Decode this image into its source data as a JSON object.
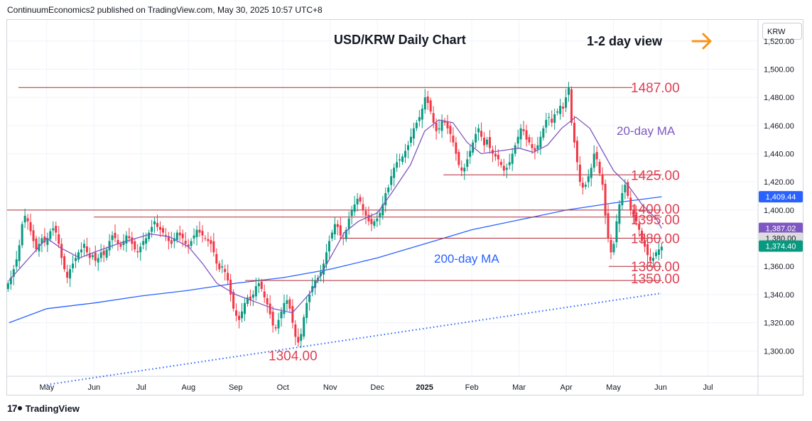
{
  "publisher": "ContinuumEconomics2 published on TradingView.com, May 30, 2025 10:57 UTC+8",
  "branding": {
    "logo_icon": "tradingview-logo-icon",
    "name": "TradingView"
  },
  "currency_label": "KRW",
  "colors": {
    "up": "#089981",
    "down": "#f23645",
    "ma20": "#7e57c2",
    "ma200": "#2962ff",
    "level_line": "#b22833",
    "level_text": "#e03e52",
    "arrow": "#f7931a",
    "price_box": "#131722"
  },
  "chart_data": {
    "type": "candlestick",
    "title": "USD/KRW Daily Chart",
    "subtitle": "1-2 day view",
    "view_direction": "sideways",
    "xlabel": "",
    "ylabel": "",
    "ylim": [
      1282,
      1535
    ],
    "y_ticks": [
      "1,300.00",
      "1,320.00",
      "1,340.00",
      "1,360.00",
      "1,380.00",
      "1,400.00",
      "1,420.00",
      "1,440.00",
      "1,460.00",
      "1,480.00",
      "1,500.00",
      "1,520.00"
    ],
    "y_tick_values": [
      1300,
      1320,
      1340,
      1360,
      1380,
      1400,
      1420,
      1440,
      1460,
      1480,
      1500,
      1520
    ],
    "x_ticks": [
      "May",
      "Jun",
      "Jul",
      "Aug",
      "Sep",
      "Oct",
      "Nov",
      "Dec",
      "2025",
      "Feb",
      "Mar",
      "Apr",
      "May",
      "Jun",
      "Jul"
    ],
    "x_tick_months": [
      0,
      1,
      2,
      3,
      4,
      5,
      6,
      7,
      8,
      9,
      10,
      11,
      12,
      13,
      14
    ],
    "x_range_months": [
      -0.84,
      15.06
    ],
    "last_candle_month": 13.02,
    "closes": [
      1348,
      1352,
      1358,
      1365,
      1375,
      1390,
      1396,
      1392,
      1385,
      1378,
      1372,
      1376,
      1380,
      1377,
      1380,
      1385,
      1387,
      1384,
      1376,
      1366,
      1358,
      1352,
      1358,
      1362,
      1366,
      1370,
      1372,
      1376,
      1370,
      1366,
      1368,
      1364,
      1366,
      1370,
      1368,
      1372,
      1378,
      1382,
      1380,
      1376,
      1374,
      1378,
      1382,
      1380,
      1376,
      1372,
      1370,
      1374,
      1378,
      1380,
      1384,
      1388,
      1392,
      1388,
      1386,
      1384,
      1382,
      1378,
      1376,
      1380,
      1384,
      1382,
      1380,
      1376,
      1374,
      1378,
      1382,
      1386,
      1384,
      1382,
      1380,
      1378,
      1376,
      1370,
      1362,
      1358,
      1360,
      1356,
      1350,
      1340,
      1330,
      1325,
      1322,
      1328,
      1334,
      1338,
      1336,
      1340,
      1346,
      1348,
      1344,
      1338,
      1333,
      1326,
      1318,
      1316,
      1322,
      1328,
      1334,
      1336,
      1330,
      1320,
      1310,
      1306,
      1312,
      1324,
      1334,
      1340,
      1346,
      1350,
      1352,
      1356,
      1362,
      1370,
      1378,
      1384,
      1390,
      1388,
      1382,
      1380,
      1386,
      1394,
      1400,
      1404,
      1408,
      1406,
      1400,
      1396,
      1392,
      1390,
      1392,
      1394,
      1398,
      1404,
      1412,
      1416,
      1424,
      1430,
      1434,
      1436,
      1438,
      1442,
      1446,
      1452,
      1458,
      1462,
      1466,
      1472,
      1480,
      1476,
      1470,
      1462,
      1456,
      1458,
      1464,
      1462,
      1458,
      1454,
      1448,
      1440,
      1432,
      1428,
      1430,
      1436,
      1442,
      1448,
      1454,
      1458,
      1452,
      1446,
      1450,
      1444,
      1440,
      1438,
      1436,
      1432,
      1428,
      1430,
      1434,
      1440,
      1446,
      1452,
      1458,
      1456,
      1450,
      1448,
      1444,
      1442,
      1446,
      1452,
      1458,
      1464,
      1466,
      1462,
      1468,
      1470,
      1474,
      1472,
      1480,
      1487,
      1462,
      1448,
      1434,
      1420,
      1416,
      1418,
      1424,
      1430,
      1440,
      1436,
      1426,
      1418,
      1396,
      1380,
      1370,
      1376,
      1392,
      1404,
      1412,
      1418,
      1410,
      1400,
      1396,
      1392,
      1386,
      1378,
      1374,
      1368,
      1364,
      1366,
      1370,
      1372,
      1374
    ],
    "ma20": {
      "name": "20-day MA",
      "points": [
        [
          -0.8,
          1350
        ],
        [
          0.0,
          1380
        ],
        [
          0.3,
          1373
        ],
        [
          0.7,
          1366
        ],
        [
          1.0,
          1370
        ],
        [
          1.5,
          1376
        ],
        [
          1.9,
          1380
        ],
        [
          2.2,
          1383
        ],
        [
          2.6,
          1381
        ],
        [
          3.0,
          1374
        ],
        [
          3.3,
          1362
        ],
        [
          3.6,
          1348
        ],
        [
          4.0,
          1340
        ],
        [
          4.4,
          1335
        ],
        [
          4.8,
          1330
        ],
        [
          5.2,
          1327
        ],
        [
          5.6,
          1342
        ],
        [
          6.0,
          1366
        ],
        [
          6.3,
          1384
        ],
        [
          6.6,
          1392
        ],
        [
          7.0,
          1398
        ],
        [
          7.3,
          1412
        ],
        [
          7.7,
          1432
        ],
        [
          8.0,
          1456
        ],
        [
          8.3,
          1464
        ],
        [
          8.6,
          1462
        ],
        [
          8.9,
          1448
        ],
        [
          9.2,
          1440
        ],
        [
          9.6,
          1442
        ],
        [
          10.0,
          1444
        ],
        [
          10.3,
          1441
        ],
        [
          10.6,
          1446
        ],
        [
          10.9,
          1458
        ],
        [
          11.2,
          1466
        ],
        [
          11.5,
          1458
        ],
        [
          11.8,
          1440
        ],
        [
          12.0,
          1428
        ],
        [
          12.3,
          1418
        ],
        [
          12.6,
          1404
        ],
        [
          12.9,
          1394
        ],
        [
          13.02,
          1387
        ]
      ]
    },
    "ma200": {
      "name": "200-day MA",
      "points": [
        [
          -0.8,
          1320
        ],
        [
          0.0,
          1330
        ],
        [
          1.0,
          1334
        ],
        [
          2.0,
          1339
        ],
        [
          3.0,
          1343
        ],
        [
          4.0,
          1348
        ],
        [
          5.0,
          1352
        ],
        [
          6.0,
          1358
        ],
        [
          7.0,
          1366
        ],
        [
          8.0,
          1376
        ],
        [
          9.0,
          1386
        ],
        [
          10.0,
          1393
        ],
        [
          11.0,
          1400
        ],
        [
          12.0,
          1405
        ],
        [
          13.02,
          1409.44
        ]
      ]
    },
    "trendline": {
      "from": [
        -0.0,
        1276
      ],
      "to": [
        13.02,
        1341
      ]
    },
    "levels": [
      {
        "label": "1487.00",
        "value": 1487,
        "from": -0.6,
        "to": 12.4
      },
      {
        "label": "1425.00",
        "value": 1425,
        "from": 8.4,
        "to": 13.02
      },
      {
        "label": "1400.00",
        "value": 1400,
        "from": -0.84,
        "to": 13.02
      },
      {
        "label": "1395.00",
        "value": 1395,
        "from": 1.0,
        "to": 13.02
      },
      {
        "label": "1380.00",
        "value": 1380,
        "from": 6.2,
        "to": 13.02
      },
      {
        "label": "1360.00",
        "value": 1360,
        "from": 11.9,
        "to": 13.02
      },
      {
        "label": "1350.00",
        "value": 1350,
        "from": 4.2,
        "to": 13.02
      },
      {
        "label": "1304.00",
        "value": 1304,
        "from": 5.0,
        "to": 5.2
      }
    ],
    "series_labels": [
      "20-day MA",
      "200-day MA"
    ],
    "price_tags": [
      {
        "label": "1,409.44",
        "value": 1409.44,
        "color": "#2962ff"
      },
      {
        "label": "1,387.02",
        "value": 1387.02,
        "color": "#7e57c2"
      },
      {
        "label": "1,380.00",
        "value": 1380.0,
        "color": "#dcdcdc"
      },
      {
        "label": "1,374.40",
        "value": 1374.4,
        "color": "#089981"
      }
    ]
  }
}
